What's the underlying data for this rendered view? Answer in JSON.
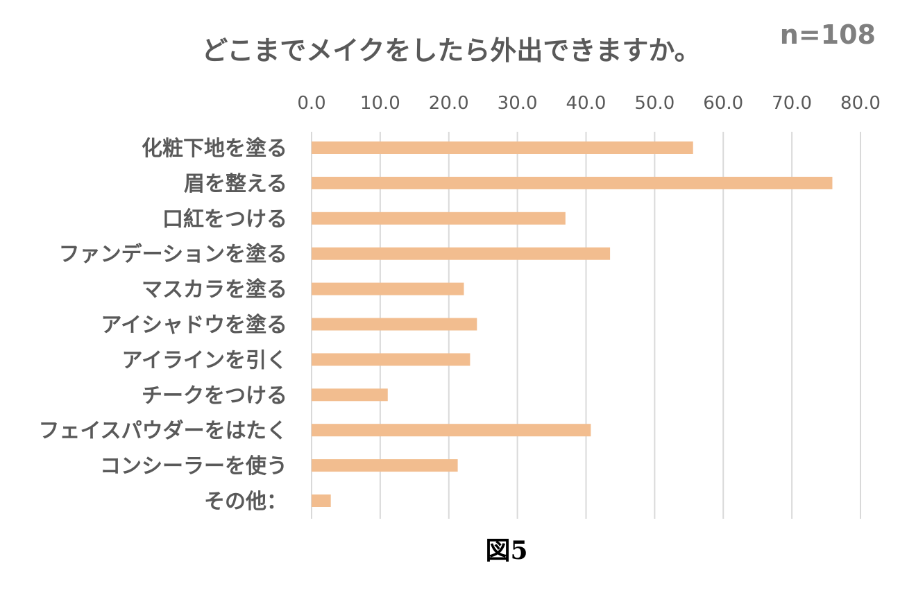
{
  "chart_data": {
    "type": "bar",
    "orientation": "horizontal",
    "title": "どこまでメイクをしたら外出できますか。",
    "sample_size_label": "n=108",
    "caption": "図5",
    "categories": [
      "化粧下地を塗る",
      "眉を整える",
      "口紅をつける",
      "ファンデーションを塗る",
      "マスカラを塗る",
      "アイシャドウを塗る",
      "アイラインを引く",
      "チークをつける",
      "フェイスパウダーをはたく",
      "コンシーラーを使う",
      "その他："
    ],
    "values": [
      55.6,
      75.9,
      37.0,
      43.5,
      22.2,
      24.1,
      23.1,
      11.1,
      40.7,
      21.3,
      2.8
    ],
    "xlim": [
      0,
      80
    ],
    "xticks": [
      "0.0",
      "10.0",
      "20.0",
      "30.0",
      "40.0",
      "50.0",
      "60.0",
      "70.0",
      "80.0"
    ],
    "x_axis_position": "top",
    "grid": true,
    "bar_color": "#f2bd8f",
    "grid_color": "#d9d9d9"
  }
}
